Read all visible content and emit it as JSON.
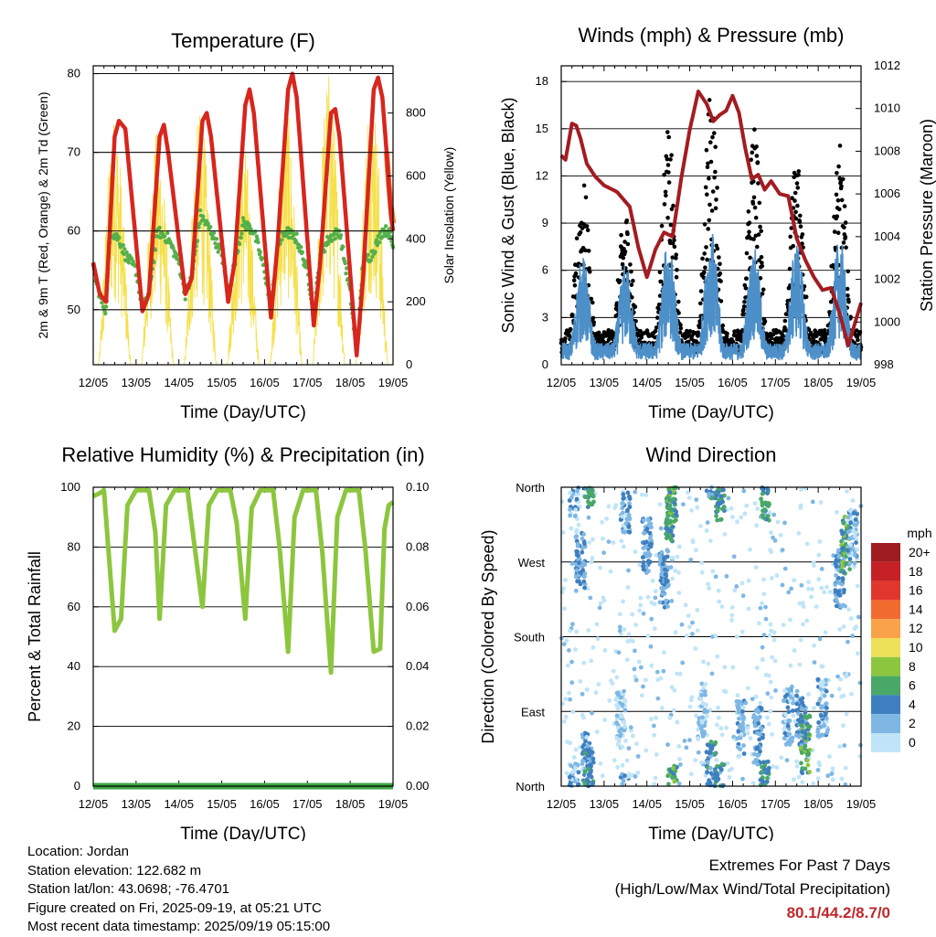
{
  "colors": {
    "temp": "#d7261e",
    "temp9m": "#f5822a",
    "dewpoint": "#54b04a",
    "solar": "#f5e04a",
    "wind": "#4d8fc8",
    "gust": "#000000",
    "pressure": "#a31c21",
    "humidity": "#8cc63e",
    "precip": "#3fa544",
    "extremes": "#c0272d"
  },
  "chart_data": [
    {
      "id": "temperature",
      "type": "line",
      "title": "Temperature (F)",
      "xlabel": "Time (Day/UTC)",
      "ylabel": "2m & 9m T (Red, Orange) & 2m Td (Green)",
      "ylabel_right": "Solar Insolation (Yellow)",
      "x_ticks": [
        "12/05",
        "13/05",
        "14/05",
        "15/05",
        "16/05",
        "17/05",
        "18/05",
        "19/05"
      ],
      "ylim": [
        43,
        81
      ],
      "y_ticks": [
        50,
        60,
        70,
        80
      ],
      "y2lim": [
        0,
        950
      ],
      "y2_ticks": [
        0,
        200,
        400,
        600,
        800
      ],
      "grid": "horizontal",
      "series": [
        {
          "key": "t2m",
          "color_key": "temp",
          "x": [
            0,
            0.15,
            0.3,
            0.5,
            0.6,
            0.75,
            1.15,
            1.3,
            1.55,
            1.65,
            1.75,
            2.15,
            2.3,
            2.55,
            2.65,
            2.75,
            3.15,
            3.3,
            3.55,
            3.65,
            3.75,
            4.15,
            4.3,
            4.55,
            4.65,
            4.75,
            5.15,
            5.3,
            5.55,
            5.65,
            5.75,
            6.15,
            6.3,
            6.55,
            6.65,
            6.75,
            6.85,
            6.95,
            7.0
          ],
          "y": [
            56,
            52,
            51,
            72,
            74,
            73,
            49.8,
            52,
            72,
            73.5,
            70,
            52,
            54,
            74,
            75,
            72,
            51,
            56,
            76,
            78,
            75,
            49,
            58,
            78,
            80,
            77,
            48,
            56,
            75,
            75.5,
            72,
            44.2,
            54,
            78,
            79.5,
            77,
            70,
            62,
            60
          ]
        },
        {
          "key": "t9m",
          "color_key": "temp9m",
          "x": [
            6.85,
            6.9,
            6.95,
            7.0
          ],
          "y": [
            70,
            66,
            63,
            61
          ]
        },
        {
          "key": "td2m",
          "color_key": "dewpoint",
          "x": [
            0,
            0.2,
            0.3,
            0.4,
            0.6,
            0.75,
            1.0,
            1.15,
            1.3,
            1.5,
            1.75,
            2.0,
            2.15,
            2.3,
            2.5,
            2.75,
            3.0,
            3.15,
            3.3,
            3.5,
            3.75,
            4.0,
            4.15,
            4.3,
            4.5,
            4.75,
            5.0,
            5.15,
            5.3,
            5.5,
            5.75,
            6.0,
            6.15,
            6.3,
            6.5,
            6.75,
            6.9,
            7.0
          ],
          "y": [
            55,
            51,
            50,
            60,
            59,
            57,
            55,
            50,
            52,
            60,
            59,
            56,
            52,
            54,
            62,
            60,
            57,
            52,
            56,
            61,
            60,
            55,
            50,
            58,
            60,
            59,
            55,
            49.5,
            57,
            59,
            60,
            52,
            44.5,
            56,
            57,
            60,
            60,
            58
          ]
        },
        {
          "key": "solar",
          "color_key": "solar",
          "peak_days": [
            0.5,
            1.5,
            2.5,
            3.5,
            4.5,
            5.5,
            6.5
          ],
          "peak_values": [
            800,
            750,
            810,
            720,
            830,
            940,
            900
          ]
        }
      ]
    },
    {
      "id": "wind",
      "type": "line",
      "title": "Winds (mph) & Pressure (mb)",
      "xlabel": "Time (Day/UTC)",
      "ylabel": "Sonic Wind & Gust (Blue, Black)",
      "ylabel_right": "Station Pressure (Maroon)",
      "x_ticks": [
        "12/05",
        "13/05",
        "14/05",
        "15/05",
        "16/05",
        "17/05",
        "18/05",
        "19/05"
      ],
      "ylim": [
        0,
        19
      ],
      "y_ticks": [
        0,
        3,
        6,
        9,
        12,
        15,
        18
      ],
      "y2lim": [
        998,
        1012
      ],
      "y2_ticks": [
        998,
        1000,
        1002,
        1004,
        1006,
        1008,
        1010,
        1012
      ],
      "grid": "horizontal",
      "series": [
        {
          "key": "pressure",
          "color_key": "pressure",
          "x": [
            0,
            0.1,
            0.25,
            0.35,
            0.45,
            0.6,
            0.8,
            1.0,
            1.3,
            1.6,
            1.8,
            2.0,
            2.2,
            2.4,
            2.6,
            2.8,
            3.0,
            3.2,
            3.4,
            3.55,
            3.7,
            3.85,
            4.0,
            4.15,
            4.3,
            4.45,
            4.6,
            4.75,
            4.9,
            5.1,
            5.3,
            5.5,
            5.7,
            5.9,
            6.1,
            6.3,
            6.5,
            6.7,
            6.85,
            7.0
          ],
          "y": [
            1007.8,
            1007.6,
            1009.3,
            1009.2,
            1008.6,
            1007.4,
            1006.8,
            1006.4,
            1006.1,
            1005.4,
            1003.5,
            1002.1,
            1003.4,
            1004.2,
            1004.0,
            1006.7,
            1009.0,
            1010.8,
            1010.2,
            1009.4,
            1009.7,
            1009.9,
            1010.6,
            1009.8,
            1008.1,
            1006.7,
            1006.9,
            1006.2,
            1006.6,
            1006.0,
            1005.9,
            1003.9,
            1002.9,
            1002.1,
            1001.5,
            1001.6,
            1000.4,
            998.9,
            999.9,
            1000.9
          ]
        },
        {
          "key": "wind",
          "color_key": "wind",
          "peak_days": [
            0.5,
            1.5,
            2.5,
            3.5,
            4.5,
            5.5,
            6.5
          ],
          "peak_values": [
            7,
            6.5,
            8,
            8.7,
            7.5,
            8,
            8.2
          ]
        },
        {
          "key": "gust",
          "color_key": "gust",
          "peak_days": [
            0.5,
            1.5,
            2.5,
            3.5,
            4.5,
            5.5,
            6.5
          ],
          "peak_values": [
            12,
            10,
            15,
            18,
            16,
            14,
            14
          ]
        }
      ]
    },
    {
      "id": "humidity",
      "type": "line",
      "title": "Relative Humidity (%) & Precipitation (in)",
      "xlabel": "Time (Day/UTC)",
      "ylabel": "Percent & Total Rainfall",
      "x_ticks": [
        "12/05",
        "13/05",
        "14/05",
        "15/05",
        "16/05",
        "17/05",
        "18/05",
        "19/05"
      ],
      "ylim": [
        0,
        100
      ],
      "y_ticks": [
        0,
        20,
        40,
        60,
        80,
        100
      ],
      "y2lim": [
        0,
        0.1
      ],
      "y2_ticks": [
        "0.00",
        "0.02",
        "0.04",
        "0.06",
        "0.08",
        "0.10"
      ],
      "grid": "horizontal",
      "series": [
        {
          "key": "rh",
          "color_key": "humidity",
          "x": [
            0,
            0.15,
            0.25,
            0.35,
            0.5,
            0.65,
            0.8,
            1.0,
            1.3,
            1.45,
            1.55,
            1.7,
            1.9,
            2.2,
            2.35,
            2.55,
            2.7,
            2.9,
            3.2,
            3.35,
            3.55,
            3.7,
            3.9,
            4.2,
            4.35,
            4.55,
            4.7,
            4.9,
            5.2,
            5.35,
            5.55,
            5.7,
            5.9,
            6.2,
            6.35,
            6.55,
            6.7,
            6.8,
            6.9,
            7.0
          ],
          "y": [
            97,
            98,
            99,
            80,
            52,
            56,
            94,
            99,
            99,
            85,
            56,
            94,
            99,
            99,
            82,
            60,
            94,
            99,
            99,
            88,
            56,
            93,
            99,
            99,
            80,
            45,
            90,
            99,
            99,
            78,
            38,
            90,
            99,
            99,
            80,
            45,
            46,
            86,
            94,
            95
          ]
        },
        {
          "key": "precip",
          "color_key": "precip",
          "x": [
            0,
            7.0
          ],
          "y": [
            0,
            0
          ]
        }
      ]
    },
    {
      "id": "direction",
      "type": "scatter",
      "title": "Wind Direction",
      "xlabel": "Time (Day/UTC)",
      "ylabel": "Direction (Colored By Speed)",
      "x_ticks": [
        "12/05",
        "13/05",
        "14/05",
        "15/05",
        "16/05",
        "17/05",
        "18/05",
        "19/05"
      ],
      "y_ticks": [
        "North",
        "East",
        "South",
        "West",
        "North"
      ],
      "ylim": [
        0,
        360
      ],
      "legend": {
        "title": "mph",
        "position": "right",
        "labels": [
          "20+",
          "18",
          "16",
          "14",
          "12",
          "10",
          "8",
          "6",
          "4",
          "2",
          "0"
        ],
        "colors": [
          "#9e1c1f",
          "#c62027",
          "#e0362d",
          "#f16a2e",
          "#f9a24a",
          "#ede15a",
          "#8cc63e",
          "#49a868",
          "#3f7fbf",
          "#7fb7e4",
          "#bfe4f7"
        ]
      },
      "clusters": [
        {
          "day": 0.3,
          "dir": 355,
          "speed": 3
        },
        {
          "day": 0.45,
          "dir": 270,
          "speed": 4
        },
        {
          "day": 0.6,
          "dir": 30,
          "speed": 3
        },
        {
          "day": 0.65,
          "dir": 10,
          "speed": 6
        },
        {
          "day": 1.4,
          "dir": 80,
          "speed": 2
        },
        {
          "day": 1.5,
          "dir": 340,
          "speed": 3
        },
        {
          "day": 2.0,
          "dir": 290,
          "speed": 4
        },
        {
          "day": 2.4,
          "dir": 250,
          "speed": 4
        },
        {
          "day": 2.55,
          "dir": 330,
          "speed": 6
        },
        {
          "day": 2.6,
          "dir": 350,
          "speed": 7
        },
        {
          "day": 3.3,
          "dir": 90,
          "speed": 2
        },
        {
          "day": 3.5,
          "dir": 20,
          "speed": 5
        },
        {
          "day": 3.7,
          "dir": 355,
          "speed": 6
        },
        {
          "day": 4.2,
          "dir": 70,
          "speed": 3
        },
        {
          "day": 4.6,
          "dir": 60,
          "speed": 4
        },
        {
          "day": 4.75,
          "dir": 355,
          "speed": 6
        },
        {
          "day": 5.3,
          "dir": 85,
          "speed": 3
        },
        {
          "day": 5.6,
          "dir": 75,
          "speed": 4
        },
        {
          "day": 5.7,
          "dir": 50,
          "speed": 7
        },
        {
          "day": 6.1,
          "dir": 95,
          "speed": 3
        },
        {
          "day": 6.5,
          "dir": 250,
          "speed": 4
        },
        {
          "day": 6.65,
          "dir": 290,
          "speed": 7
        },
        {
          "day": 6.8,
          "dir": 300,
          "speed": 3
        }
      ]
    }
  ],
  "meta": {
    "location": "Location: Jordan",
    "elevation": "Station elevation: 122.682 m",
    "latlon": "Station lat/lon: 43.0698; -76.4701",
    "created": "Figure created on Fri, 2025-09-19, at 05:21 UTC",
    "timestamp": "Most recent data timestamp: 2025/09/19 05:15:00"
  },
  "extremes": {
    "title": "Extremes For Past 7 Days",
    "subtitle": "(High/Low/Max Wind/Total Precipitation)",
    "values": "80.1/44.2/8.7/0"
  }
}
